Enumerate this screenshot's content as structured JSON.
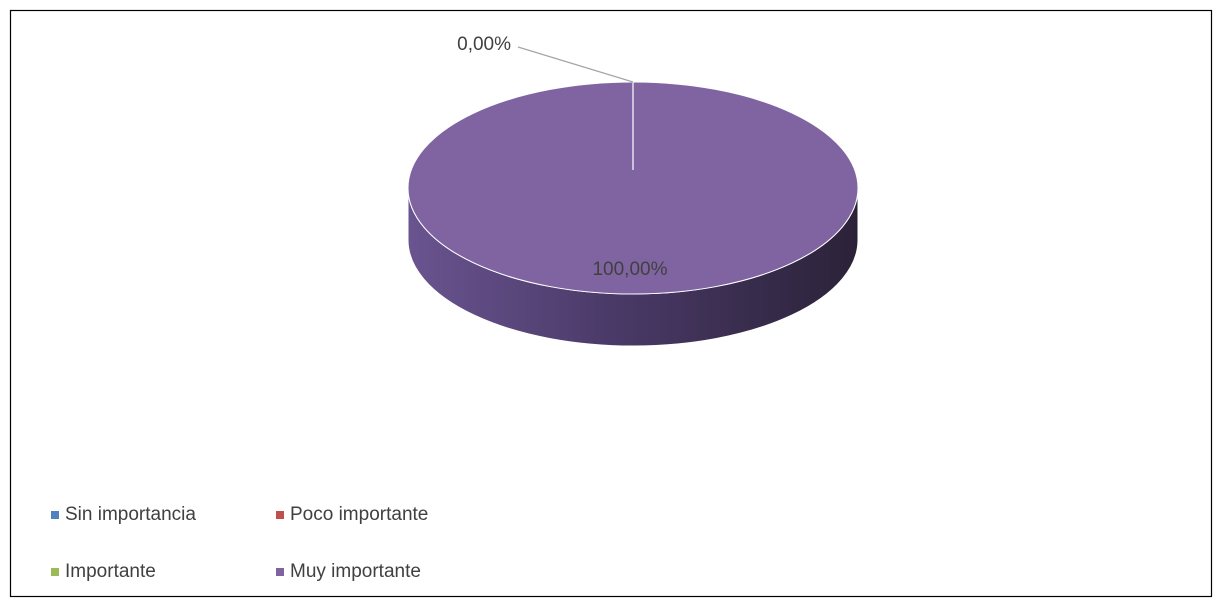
{
  "chart_data": {
    "type": "pie3d",
    "categories": [
      "Sin importancia",
      "Poco importante",
      "Importante",
      "Muy importante"
    ],
    "values": [
      0,
      0,
      0,
      100
    ],
    "value_labels": [
      null,
      null,
      "0,00%",
      "100,00%"
    ],
    "colors": [
      "#4f81bd",
      "#c0504d",
      "#9bbb59",
      "#8064a2"
    ],
    "legend": "bottom-left"
  }
}
